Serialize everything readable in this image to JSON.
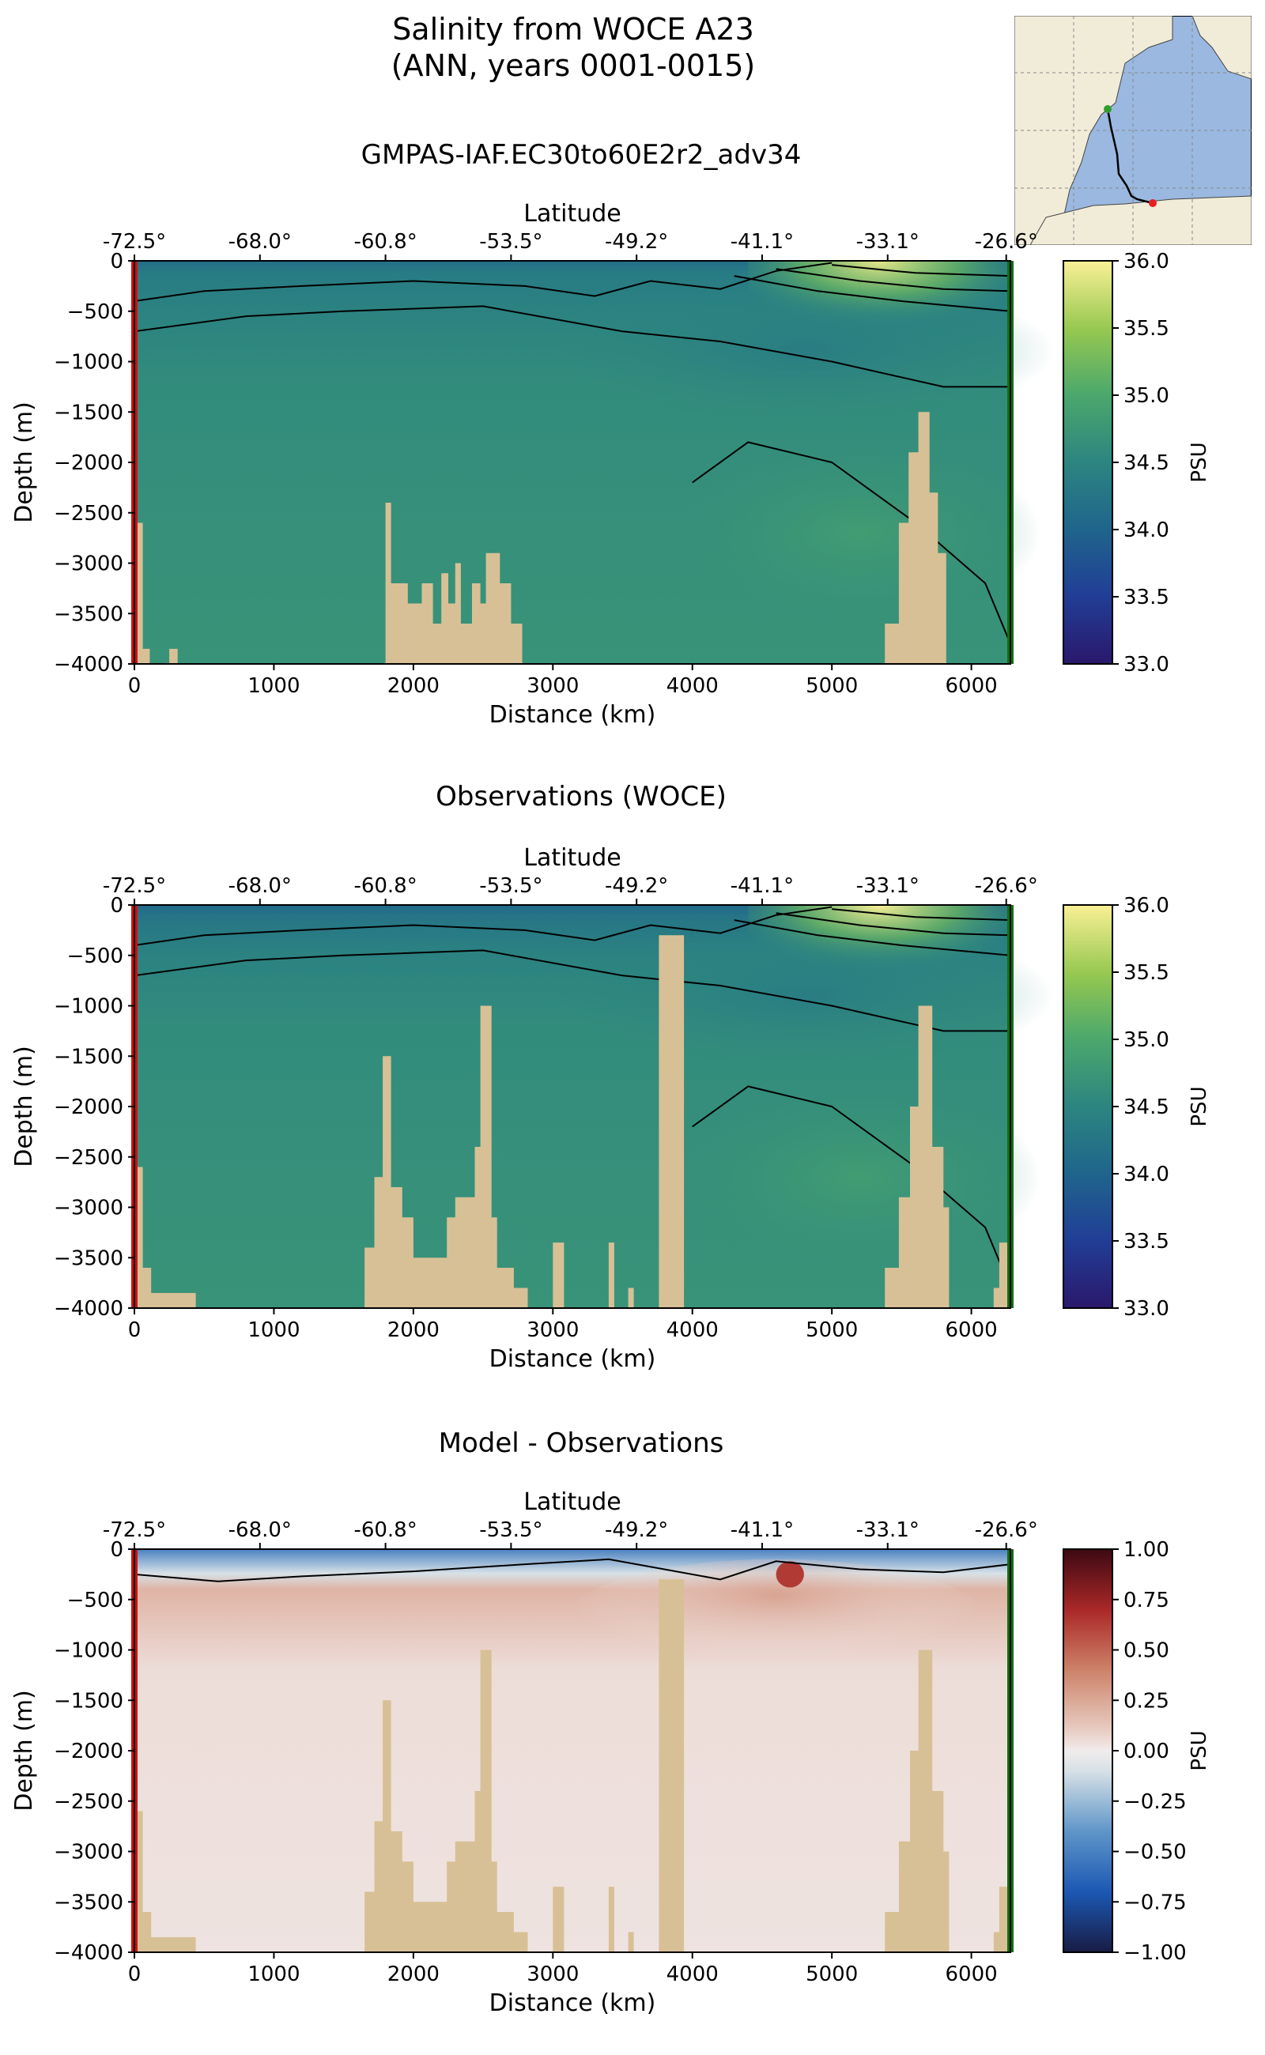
{
  "header": {
    "title_line1": "Salinity from WOCE A23",
    "title_line2": "(ANN, years 0001-0015)",
    "model_name": "GMPAS-IAF.EC30to60E2r2_adv34"
  },
  "inset_map": {
    "description_icon": "south-atlantic-map-icon",
    "land_color": "#f0ecd8",
    "ocean_color": "#9ab8e0",
    "transect_start_color": "#2e9e2e",
    "transect_end_color": "#e82020"
  },
  "chart_data": [
    {
      "type": "heatmap",
      "title": "",
      "xlabel": "Distance (km)",
      "ylabel": "Depth (m)",
      "top_axis_label": "Latitude",
      "top_tick_labels": [
        "-72.5°",
        "-68.0°",
        "-60.8°",
        "-53.5°",
        "-49.2°",
        "-41.1°",
        "-33.1°",
        "-26.6°"
      ],
      "top_tick_distances": [
        0,
        900,
        1800,
        2700,
        3600,
        4500,
        5400,
        6250
      ],
      "x_ticks": [
        0,
        1000,
        2000,
        3000,
        4000,
        5000,
        6000
      ],
      "y_ticks": [
        0,
        -500,
        -1000,
        -1500,
        -2000,
        -2500,
        -3000,
        -3500,
        -4000
      ],
      "xlim": [
        0,
        6280
      ],
      "ylim": [
        -4000,
        0
      ],
      "colorbar": {
        "label": "PSU",
        "min": 33.0,
        "max": 36.0,
        "ticks": [
          "36.0",
          "35.5",
          "35.0",
          "34.5",
          "34.0",
          "33.5",
          "33.0"
        ],
        "colormap": "haline"
      },
      "contour_levels": [
        34.0,
        34.2,
        34.4,
        34.6,
        34.8,
        35.0,
        35.2,
        35.4,
        35.6
      ],
      "bathymetry_color": "#d8c096",
      "bathymetry_km_depth": [
        [
          0,
          -2600
        ],
        [
          60,
          -2600
        ],
        [
          60,
          -3850
        ],
        [
          110,
          -3850
        ],
        [
          110,
          -4000
        ],
        [
          250,
          -4000
        ],
        [
          250,
          -3850
        ],
        [
          310,
          -3850
        ],
        [
          310,
          -4000
        ],
        [
          1800,
          -4000
        ],
        [
          1800,
          -2400
        ],
        [
          1840,
          -2400
        ],
        [
          1840,
          -3200
        ],
        [
          1960,
          -3200
        ],
        [
          1960,
          -3400
        ],
        [
          2060,
          -3400
        ],
        [
          2060,
          -3200
        ],
        [
          2140,
          -3200
        ],
        [
          2140,
          -3600
        ],
        [
          2200,
          -3600
        ],
        [
          2200,
          -3100
        ],
        [
          2250,
          -3100
        ],
        [
          2250,
          -3400
        ],
        [
          2300,
          -3400
        ],
        [
          2300,
          -3000
        ],
        [
          2340,
          -3000
        ],
        [
          2340,
          -3600
        ],
        [
          2420,
          -3600
        ],
        [
          2420,
          -3200
        ],
        [
          2480,
          -3200
        ],
        [
          2480,
          -3400
        ],
        [
          2520,
          -3400
        ],
        [
          2520,
          -2900
        ],
        [
          2620,
          -2900
        ],
        [
          2620,
          -3200
        ],
        [
          2700,
          -3200
        ],
        [
          2700,
          -3600
        ],
        [
          2780,
          -3600
        ],
        [
          2780,
          -4000
        ],
        [
          5380,
          -4000
        ],
        [
          5380,
          -3600
        ],
        [
          5480,
          -3600
        ],
        [
          5480,
          -2600
        ],
        [
          5550,
          -2600
        ],
        [
          5550,
          -1900
        ],
        [
          5620,
          -1900
        ],
        [
          5620,
          -1500
        ],
        [
          5700,
          -1500
        ],
        [
          5700,
          -2300
        ],
        [
          5760,
          -2300
        ],
        [
          5760,
          -2900
        ],
        [
          5820,
          -2900
        ],
        [
          5820,
          -4000
        ],
        [
          6280,
          -4000
        ]
      ],
      "field": {
        "surface_south": 34.0,
        "deep": 34.7,
        "subtropical_surface_max": 35.9
      }
    },
    {
      "type": "heatmap",
      "title": "Observations (WOCE)",
      "xlabel": "Distance (km)",
      "ylabel": "Depth (m)",
      "top_axis_label": "Latitude",
      "top_tick_labels": [
        "-72.5°",
        "-68.0°",
        "-60.8°",
        "-53.5°",
        "-49.2°",
        "-41.1°",
        "-33.1°",
        "-26.6°"
      ],
      "top_tick_distances": [
        0,
        900,
        1800,
        2700,
        3600,
        4500,
        5400,
        6250
      ],
      "x_ticks": [
        0,
        1000,
        2000,
        3000,
        4000,
        5000,
        6000
      ],
      "y_ticks": [
        0,
        -500,
        -1000,
        -1500,
        -2000,
        -2500,
        -3000,
        -3500,
        -4000
      ],
      "xlim": [
        0,
        6280
      ],
      "ylim": [
        -4000,
        0
      ],
      "colorbar": {
        "label": "PSU",
        "min": 33.0,
        "max": 36.0,
        "ticks": [
          "36.0",
          "35.5",
          "35.0",
          "34.5",
          "34.0",
          "33.5",
          "33.0"
        ],
        "colormap": "haline"
      },
      "contour_levels": [
        34.0,
        34.2,
        34.4,
        34.6,
        34.8,
        35.0,
        35.2,
        35.4,
        35.6
      ],
      "bathymetry_color": "#d8c096",
      "bathymetry_km_depth": [
        [
          0,
          -2600
        ],
        [
          60,
          -2600
        ],
        [
          60,
          -3600
        ],
        [
          120,
          -3600
        ],
        [
          120,
          -3850
        ],
        [
          440,
          -3850
        ],
        [
          440,
          -4000
        ],
        [
          1650,
          -4000
        ],
        [
          1650,
          -3400
        ],
        [
          1720,
          -3400
        ],
        [
          1720,
          -2700
        ],
        [
          1780,
          -2700
        ],
        [
          1780,
          -1500
        ],
        [
          1840,
          -1500
        ],
        [
          1840,
          -2800
        ],
        [
          1920,
          -2800
        ],
        [
          1920,
          -3100
        ],
        [
          2000,
          -3100
        ],
        [
          2000,
          -3500
        ],
        [
          2240,
          -3500
        ],
        [
          2240,
          -3100
        ],
        [
          2300,
          -3100
        ],
        [
          2300,
          -2900
        ],
        [
          2440,
          -2900
        ],
        [
          2440,
          -2400
        ],
        [
          2480,
          -2400
        ],
        [
          2480,
          -1000
        ],
        [
          2560,
          -1000
        ],
        [
          2560,
          -3100
        ],
        [
          2600,
          -3100
        ],
        [
          2600,
          -3600
        ],
        [
          2720,
          -3600
        ],
        [
          2720,
          -3800
        ],
        [
          2820,
          -3800
        ],
        [
          2820,
          -4000
        ],
        [
          3000,
          -4000
        ],
        [
          3000,
          -3350
        ],
        [
          3080,
          -3350
        ],
        [
          3080,
          -4000
        ],
        [
          3400,
          -4000
        ],
        [
          3400,
          -3350
        ],
        [
          3440,
          -3350
        ],
        [
          3440,
          -4000
        ],
        [
          3540,
          -4000
        ],
        [
          3540,
          -3800
        ],
        [
          3580,
          -3800
        ],
        [
          3580,
          -4000
        ],
        [
          3760,
          -4000
        ],
        [
          3760,
          -300
        ],
        [
          3940,
          -300
        ],
        [
          3940,
          -4000
        ],
        [
          5380,
          -4000
        ],
        [
          5380,
          -3600
        ],
        [
          5480,
          -3600
        ],
        [
          5480,
          -2900
        ],
        [
          5560,
          -2900
        ],
        [
          5560,
          -2000
        ],
        [
          5620,
          -2000
        ],
        [
          5620,
          -1000
        ],
        [
          5720,
          -1000
        ],
        [
          5720,
          -2400
        ],
        [
          5800,
          -2400
        ],
        [
          5800,
          -3000
        ],
        [
          5840,
          -3000
        ],
        [
          5840,
          -4000
        ],
        [
          6160,
          -4000
        ],
        [
          6160,
          -3800
        ],
        [
          6200,
          -3800
        ],
        [
          6200,
          -3350
        ],
        [
          6280,
          -3350
        ],
        [
          6280,
          -4000
        ]
      ],
      "field": {
        "surface_south": 33.9,
        "deep": 34.7,
        "subtropical_surface_max": 36.0
      }
    },
    {
      "type": "heatmap",
      "title": "Model - Observations",
      "xlabel": "Distance (km)",
      "ylabel": "Depth (m)",
      "top_axis_label": "Latitude",
      "top_tick_labels": [
        "-72.5°",
        "-68.0°",
        "-60.8°",
        "-53.5°",
        "-49.2°",
        "-41.1°",
        "-33.1°",
        "-26.6°"
      ],
      "top_tick_distances": [
        0,
        900,
        1800,
        2700,
        3600,
        4500,
        5400,
        6250
      ],
      "x_ticks": [
        0,
        1000,
        2000,
        3000,
        4000,
        5000,
        6000
      ],
      "y_ticks": [
        0,
        -500,
        -1000,
        -1500,
        -2000,
        -2500,
        -3000,
        -3500,
        -4000
      ],
      "xlim": [
        0,
        6280
      ],
      "ylim": [
        -4000,
        0
      ],
      "colorbar": {
        "label": "PSU",
        "min": -1.0,
        "max": 1.0,
        "ticks": [
          "1.00",
          "0.75",
          "0.50",
          "0.25",
          "0.00",
          "−0.25",
          "−0.50",
          "−0.75",
          "−1.00"
        ],
        "colormap": "balance"
      },
      "contour_levels": [
        0.0
      ],
      "bathymetry_color": "#d8c096",
      "bathymetry_km_depth": [
        [
          0,
          -2600
        ],
        [
          60,
          -2600
        ],
        [
          60,
          -3600
        ],
        [
          120,
          -3600
        ],
        [
          120,
          -3850
        ],
        [
          440,
          -3850
        ],
        [
          440,
          -4000
        ],
        [
          1650,
          -4000
        ],
        [
          1650,
          -3400
        ],
        [
          1720,
          -3400
        ],
        [
          1720,
          -2700
        ],
        [
          1780,
          -2700
        ],
        [
          1780,
          -1500
        ],
        [
          1840,
          -1500
        ],
        [
          1840,
          -2800
        ],
        [
          1920,
          -2800
        ],
        [
          1920,
          -3100
        ],
        [
          2000,
          -3100
        ],
        [
          2000,
          -3500
        ],
        [
          2240,
          -3500
        ],
        [
          2240,
          -3100
        ],
        [
          2300,
          -3100
        ],
        [
          2300,
          -2900
        ],
        [
          2440,
          -2900
        ],
        [
          2440,
          -2400
        ],
        [
          2480,
          -2400
        ],
        [
          2480,
          -1000
        ],
        [
          2560,
          -1000
        ],
        [
          2560,
          -3100
        ],
        [
          2600,
          -3100
        ],
        [
          2600,
          -3600
        ],
        [
          2720,
          -3600
        ],
        [
          2720,
          -3800
        ],
        [
          2820,
          -3800
        ],
        [
          2820,
          -4000
        ],
        [
          3000,
          -4000
        ],
        [
          3000,
          -3350
        ],
        [
          3080,
          -3350
        ],
        [
          3080,
          -4000
        ],
        [
          3400,
          -4000
        ],
        [
          3400,
          -3350
        ],
        [
          3440,
          -3350
        ],
        [
          3440,
          -4000
        ],
        [
          3540,
          -4000
        ],
        [
          3540,
          -3800
        ],
        [
          3580,
          -3800
        ],
        [
          3580,
          -4000
        ],
        [
          3760,
          -4000
        ],
        [
          3760,
          -300
        ],
        [
          3940,
          -300
        ],
        [
          3940,
          -4000
        ],
        [
          5380,
          -4000
        ],
        [
          5380,
          -3600
        ],
        [
          5480,
          -3600
        ],
        [
          5480,
          -2900
        ],
        [
          5560,
          -2900
        ],
        [
          5560,
          -2000
        ],
        [
          5620,
          -2000
        ],
        [
          5620,
          -1000
        ],
        [
          5720,
          -1000
        ],
        [
          5720,
          -2400
        ],
        [
          5800,
          -2400
        ],
        [
          5800,
          -3000
        ],
        [
          5840,
          -3000
        ],
        [
          5840,
          -4000
        ],
        [
          6160,
          -4000
        ],
        [
          6160,
          -3800
        ],
        [
          6200,
          -3800
        ],
        [
          6200,
          -3350
        ],
        [
          6280,
          -3350
        ],
        [
          6280,
          -4000
        ]
      ],
      "field": {
        "surface_bias_south": -0.5,
        "deep_bias": 0.03,
        "subsurface_bias_north": 0.2
      }
    }
  ]
}
